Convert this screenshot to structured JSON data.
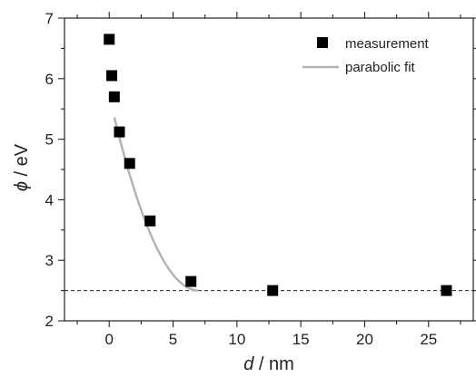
{
  "chart_data": {
    "type": "scatter",
    "xlabel_var": "d",
    "xlabel_unit": " / nm",
    "ylabel_var": "ϕ",
    "ylabel_unit": " / eV",
    "xlim": [
      -3.5,
      28.5
    ],
    "ylim": [
      2,
      7
    ],
    "x_ticks": [
      0,
      5,
      10,
      15,
      20,
      25
    ],
    "y_ticks": [
      2,
      3,
      4,
      5,
      6,
      7
    ],
    "x_minor_step": 2.5,
    "y_minor_step": 0.5,
    "grid": false,
    "legend_position": "top-right",
    "series": [
      {
        "name": "measurement",
        "marker": "square",
        "color": "#000000",
        "x": [
          0.0,
          0.2,
          0.4,
          0.8,
          1.6,
          3.2,
          6.4,
          12.8,
          26.4
        ],
        "y": [
          6.65,
          6.05,
          5.7,
          5.12,
          4.6,
          3.65,
          2.65,
          2.5,
          2.5
        ]
      },
      {
        "name": "parabolic fit",
        "marker": "line",
        "color": "#b4b4b4",
        "vertex_x": 7.0,
        "baseline": 2.5,
        "coefficient": 0.0657,
        "x_start": 0.4
      }
    ],
    "reference_line": {
      "y": 2.5,
      "style": "dashed",
      "color": "#222222"
    }
  }
}
